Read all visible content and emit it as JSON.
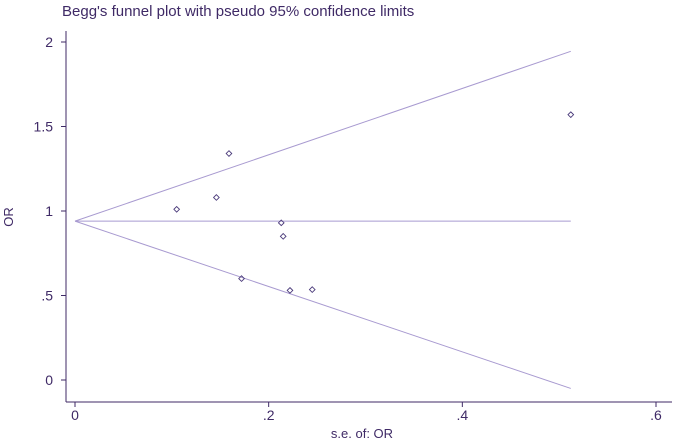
{
  "chart_data": {
    "type": "scatter",
    "title": "Begg's funnel plot with pseudo 95% confidence limits",
    "xlabel": "s.e. of: OR",
    "ylabel": "OR",
    "xlim": [
      0,
      0.62
    ],
    "ylim": [
      -0.1,
      2.1
    ],
    "xticks": [
      0,
      0.2,
      0.4,
      0.6
    ],
    "xtick_labels": [
      "0",
      ".2",
      ".4",
      ".6"
    ],
    "yticks": [
      0,
      0.5,
      1,
      1.5,
      2
    ],
    "ytick_labels": [
      "0",
      ".5",
      "1",
      "1.5",
      "2"
    ],
    "grid": false,
    "colors": {
      "text": "#3f2a66",
      "line": "#a89ad0",
      "marker": "#4a3a7a",
      "axis": "#3f2a66"
    },
    "pooled_estimate": 0.94,
    "limit_lines": {
      "upper": {
        "x": [
          0,
          0.512
        ],
        "y": [
          0.94,
          1.945
        ]
      },
      "lower": {
        "x": [
          0,
          0.512
        ],
        "y": [
          0.94,
          -0.05
        ]
      },
      "pooled": {
        "x": [
          0,
          0.512
        ],
        "y": [
          0.94,
          0.94
        ]
      }
    },
    "points": [
      {
        "x": 0.105,
        "y": 1.01
      },
      {
        "x": 0.146,
        "y": 1.08
      },
      {
        "x": 0.159,
        "y": 1.34
      },
      {
        "x": 0.172,
        "y": 0.6
      },
      {
        "x": 0.213,
        "y": 0.93
      },
      {
        "x": 0.215,
        "y": 0.85
      },
      {
        "x": 0.222,
        "y": 0.53
      },
      {
        "x": 0.245,
        "y": 0.535
      },
      {
        "x": 0.512,
        "y": 1.57
      }
    ]
  }
}
